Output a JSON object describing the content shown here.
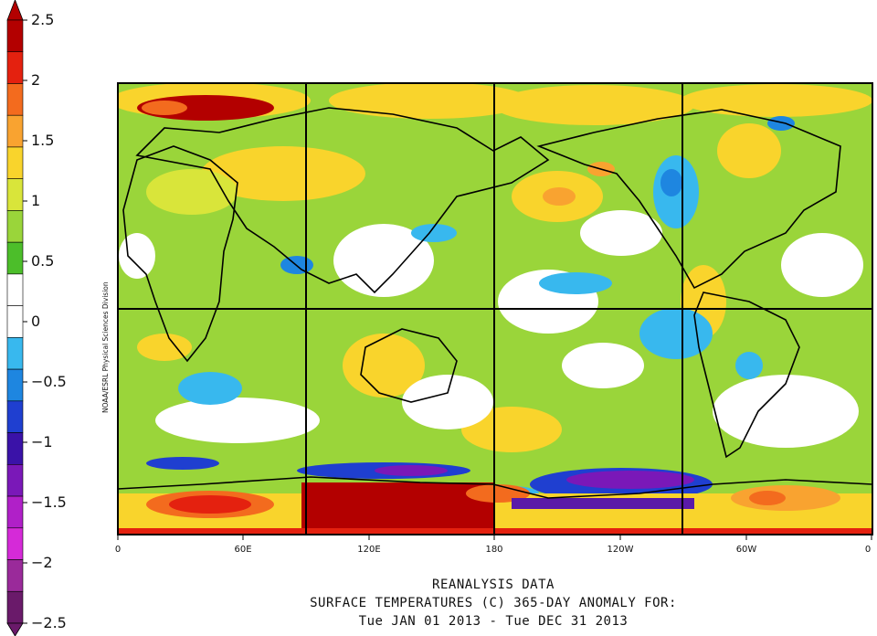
{
  "colorbar": {
    "labels": [
      "2.5",
      "2",
      "1.5",
      "1",
      "0.5",
      "0",
      "−0.5",
      "−1",
      "−1.5",
      "−2",
      "−2.5"
    ],
    "colors": [
      "#b30000",
      "#e4210f",
      "#f36b1e",
      "#f9a330",
      "#f9d42c",
      "#d9e53a",
      "#9ad53a",
      "#4cbe2a",
      "#ffffff",
      "#ffffff",
      "#38b8ee",
      "#1e86e0",
      "#1f3fd0",
      "#3a12a8",
      "#7a18b8",
      "#b020c8",
      "#d52ad8",
      "#9a2a9a",
      "#6a1a6a"
    ]
  },
  "map": {
    "x_ticks": [
      "0",
      "60E",
      "120E",
      "180",
      "120W",
      "60W",
      "0"
    ],
    "ocean_color": "#9ad53a",
    "border_color": "#000000"
  },
  "credit": "NOAA/ESRL Physical Sciences Division",
  "title": {
    "line1": "REANALYSIS DATA",
    "line2": "SURFACE TEMPERATURES (C)   365-DAY ANOMALY FOR:",
    "line3": "Tue JAN 01 2013 - Tue DEC 31 2013"
  }
}
